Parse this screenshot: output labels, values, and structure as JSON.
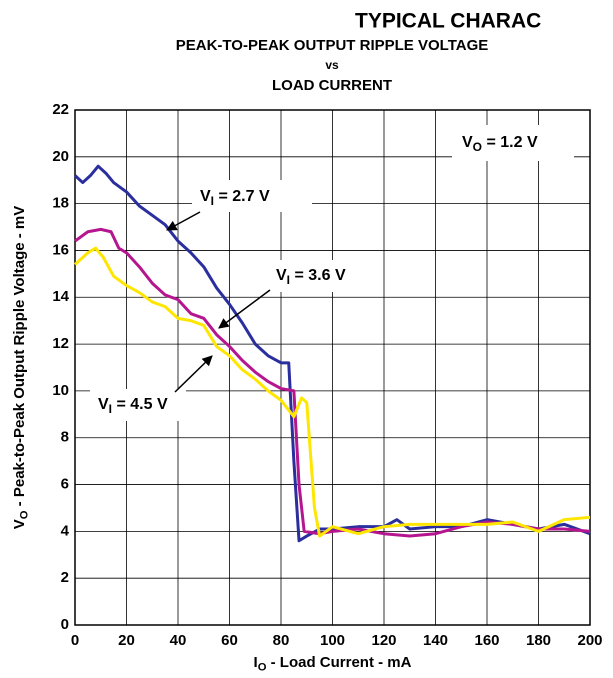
{
  "chart_data": {
    "type": "line",
    "header": "TYPICAL CHARAC",
    "title": "PEAK-TO-PEAK OUTPUT RIPPLE VOLTAGE",
    "title_vs": "vs",
    "subtitle": "LOAD CURRENT",
    "xlabel": {
      "main": "I",
      "sub": "O",
      "rest": " - Load Current - mA"
    },
    "ylabel": {
      "main": "V",
      "sub": "O",
      "rest": " - Peak-to-Peak Output Ripple Voltage - mV"
    },
    "xlim": [
      0,
      200
    ],
    "xticks": [
      0,
      20,
      40,
      60,
      80,
      100,
      120,
      140,
      160,
      180,
      200
    ],
    "ylim": [
      0,
      22
    ],
    "yticks": [
      0,
      2,
      4,
      6,
      8,
      10,
      12,
      14,
      16,
      18,
      20,
      22
    ],
    "grid": true,
    "annotations": [
      {
        "main": "V",
        "sub": "O",
        "rest": " = 1.2 V"
      },
      {
        "main": "V",
        "sub": "I",
        "rest": " = 2.7 V"
      },
      {
        "main": "V",
        "sub": "I",
        "rest": " = 3.6 V"
      },
      {
        "main": "V",
        "sub": "I",
        "rest": " = 4.5 V"
      }
    ],
    "series": [
      {
        "name": "VI = 2.7 V",
        "color": "#2b2f9e",
        "x": [
          0,
          3,
          6,
          9,
          12,
          15,
          20,
          25,
          30,
          35,
          40,
          45,
          50,
          55,
          60,
          65,
          70,
          75,
          80,
          83,
          85,
          87,
          90,
          95,
          100,
          110,
          120,
          125,
          130,
          140,
          150,
          160,
          170,
          180,
          190,
          200
        ],
        "values": [
          19.2,
          18.9,
          19.2,
          19.6,
          19.3,
          18.9,
          18.5,
          17.9,
          17.5,
          17.1,
          16.4,
          15.9,
          15.3,
          14.4,
          13.7,
          12.9,
          12.0,
          11.5,
          11.2,
          11.2,
          7,
          3.6,
          3.8,
          4.1,
          4.1,
          4.2,
          4.2,
          4.5,
          4.1,
          4.2,
          4.2,
          4.5,
          4.3,
          4.1,
          4.3,
          3.9
        ]
      },
      {
        "name": "VI = 3.6 V",
        "color": "#b5168f",
        "x": [
          0,
          5,
          10,
          14,
          17,
          20,
          25,
          30,
          35,
          40,
          45,
          50,
          55,
          60,
          65,
          70,
          75,
          80,
          85,
          87,
          89,
          95,
          100,
          110,
          120,
          130,
          140,
          150,
          160,
          170,
          180,
          190,
          200
        ],
        "values": [
          16.4,
          16.8,
          16.9,
          16.8,
          16.1,
          15.9,
          15.3,
          14.6,
          14.1,
          13.9,
          13.3,
          13.1,
          12.4,
          11.9,
          11.3,
          10.8,
          10.4,
          10.1,
          10.0,
          6,
          4.0,
          3.9,
          4.0,
          4.1,
          3.9,
          3.8,
          3.9,
          4.2,
          4.4,
          4.3,
          4.1,
          4.1,
          4.0
        ]
      },
      {
        "name": "VI = 4.5 V",
        "color": "#ffe600",
        "x": [
          0,
          5,
          8,
          11,
          15,
          20,
          25,
          30,
          35,
          40,
          45,
          50,
          55,
          60,
          65,
          70,
          75,
          80,
          85,
          88,
          90,
          93,
          95,
          100,
          110,
          120,
          130,
          140,
          150,
          160,
          170,
          180,
          190,
          200
        ],
        "values": [
          15.4,
          15.9,
          16.1,
          15.7,
          14.9,
          14.5,
          14.2,
          13.8,
          13.6,
          13.1,
          13.0,
          12.8,
          11.9,
          11.5,
          10.9,
          10.5,
          10.0,
          9.6,
          8.9,
          9.7,
          9.5,
          5,
          3.8,
          4.2,
          3.9,
          4.2,
          4.3,
          4.3,
          4.3,
          4.3,
          4.4,
          4.0,
          4.5,
          4.6
        ]
      }
    ]
  }
}
